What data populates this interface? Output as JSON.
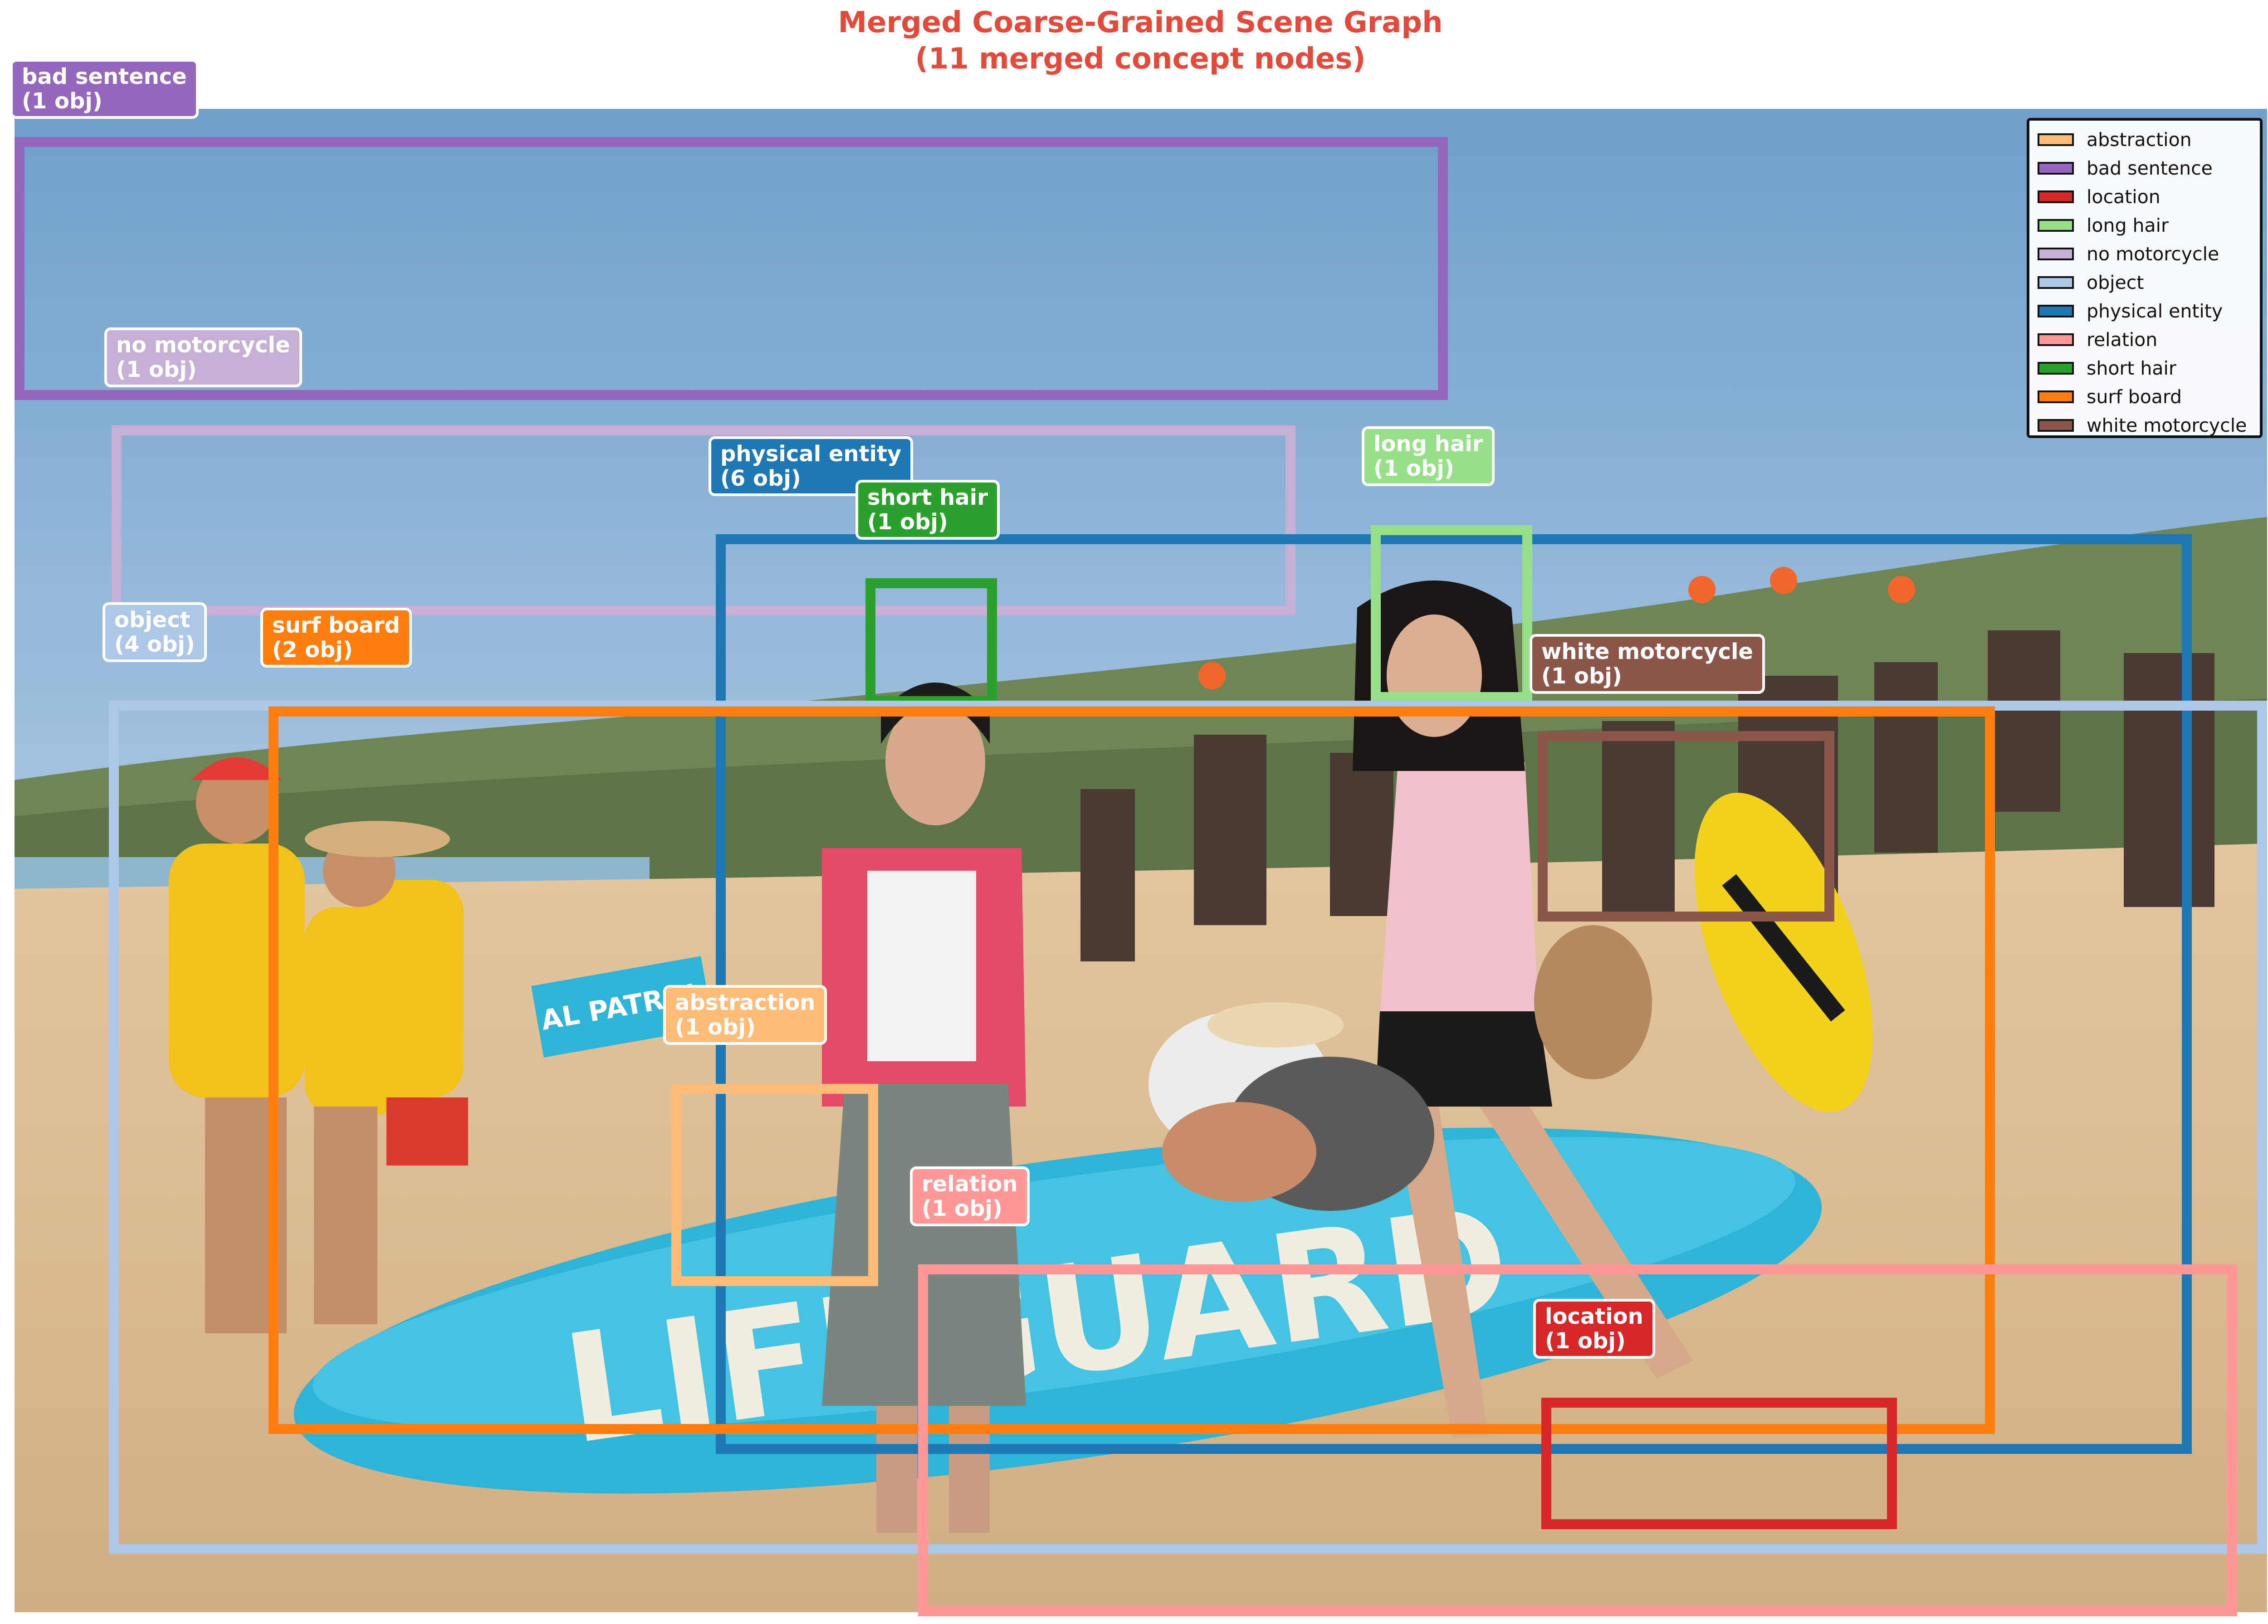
{
  "title": {
    "line1": "Merged Coarse-Grained Scene Graph",
    "line2": "(11 merged concept nodes)"
  },
  "photo": {
    "board_text": "LIFEGUARD",
    "flag_text": "AL PATROL"
  },
  "boxes": [
    {
      "name": "bad sentence",
      "count": "(1 obj)",
      "color": "#9467bd"
    },
    {
      "name": "no motorcycle",
      "count": "(1 obj)",
      "color": "#c5b0d5"
    },
    {
      "name": "physical entity",
      "count": "(6 obj)",
      "color": "#1f77b4"
    },
    {
      "name": "short hair",
      "count": "(1 obj)",
      "color": "#2ca02c"
    },
    {
      "name": "long hair",
      "count": "(1 obj)",
      "color": "#98df8a"
    },
    {
      "name": "object",
      "count": "(4 obj)",
      "color": "#aec7e8"
    },
    {
      "name": "surf board",
      "count": "(2 obj)",
      "color": "#ff7f0e"
    },
    {
      "name": "white motorcycle",
      "count": "(1 obj)",
      "color": "#8c564b"
    },
    {
      "name": "abstraction",
      "count": "(1 obj)",
      "color": "#ffbb78"
    },
    {
      "name": "relation",
      "count": "(1 obj)",
      "color": "#ff9896"
    },
    {
      "name": "location",
      "count": "(1 obj)",
      "color": "#d62728"
    }
  ],
  "legend": [
    {
      "label": "abstraction",
      "color": "#ffbb78"
    },
    {
      "label": "bad sentence",
      "color": "#9467bd"
    },
    {
      "label": "location",
      "color": "#d62728"
    },
    {
      "label": "long hair",
      "color": "#98df8a"
    },
    {
      "label": "no motorcycle",
      "color": "#c5b0d5"
    },
    {
      "label": "object",
      "color": "#aec7e8"
    },
    {
      "label": "physical entity",
      "color": "#1f77b4"
    },
    {
      "label": "relation",
      "color": "#ff9896"
    },
    {
      "label": "short hair",
      "color": "#2ca02c"
    },
    {
      "label": "surf board",
      "color": "#ff7f0e"
    },
    {
      "label": "white motorcycle",
      "color": "#8c564b"
    }
  ]
}
